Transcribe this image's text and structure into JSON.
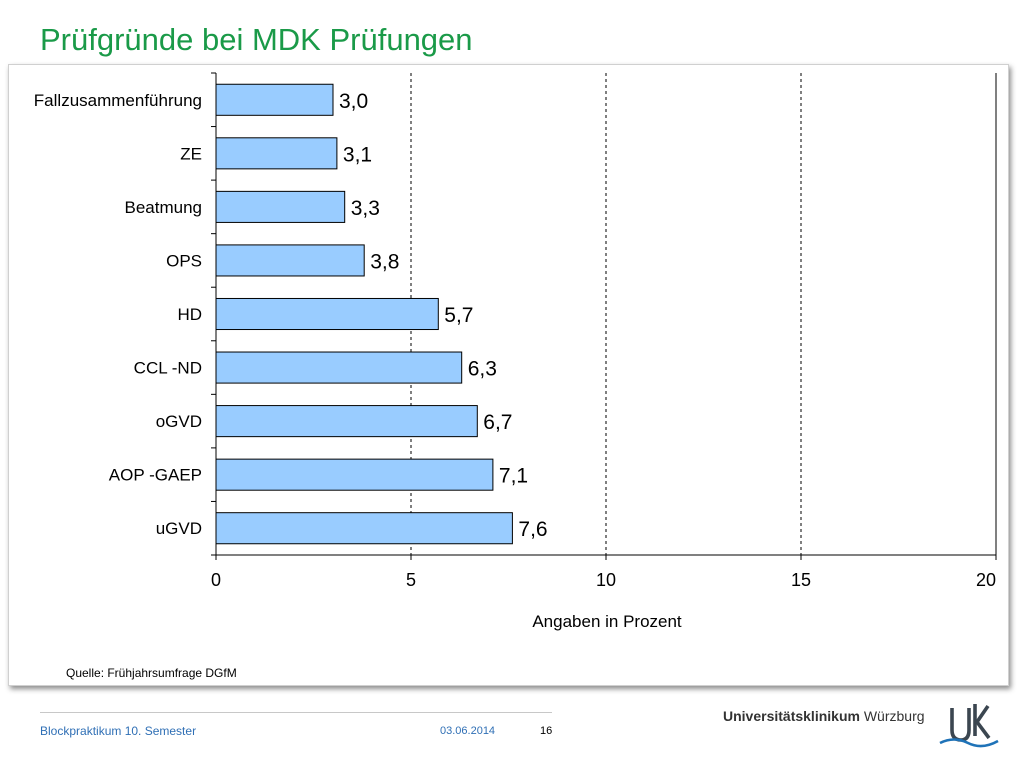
{
  "title": "Prüfgründe bei MDK Prüfungen",
  "chart_data": {
    "type": "bar",
    "orientation": "horizontal",
    "categories": [
      "Fallzusammenführung",
      "ZE",
      "Beatmung",
      "OPS",
      "HD",
      "CCL -ND",
      "oGVD",
      "AOP -GAEP",
      "uGVD"
    ],
    "values": [
      3.0,
      3.1,
      3.3,
      3.8,
      5.7,
      6.3,
      6.7,
      7.1,
      7.6
    ],
    "value_labels": [
      "3,0",
      "3,1",
      "3,3",
      "3,8",
      "5,7",
      "6,3",
      "6,7",
      "7,1",
      "7,6"
    ],
    "xlabel": "Angaben in Prozent",
    "xlim": [
      0,
      20
    ],
    "xticks": [
      0,
      5,
      10,
      15,
      20
    ],
    "grid": "vertical dashed",
    "bar_color": "#99ccff",
    "bar_border": "#000000"
  },
  "source": "Quelle: Frühjahrsumfrage DGfM",
  "footer": {
    "course": "Blockpraktikum 10. Semester",
    "date": "03.06.2014",
    "page": "16"
  },
  "org": {
    "name_bold": "Universitätsklinikum",
    "name_regular": "Würzburg",
    "logo_text": "UK"
  },
  "colors": {
    "title": "#1a9a48",
    "footer_text": "#2f6fb5"
  }
}
